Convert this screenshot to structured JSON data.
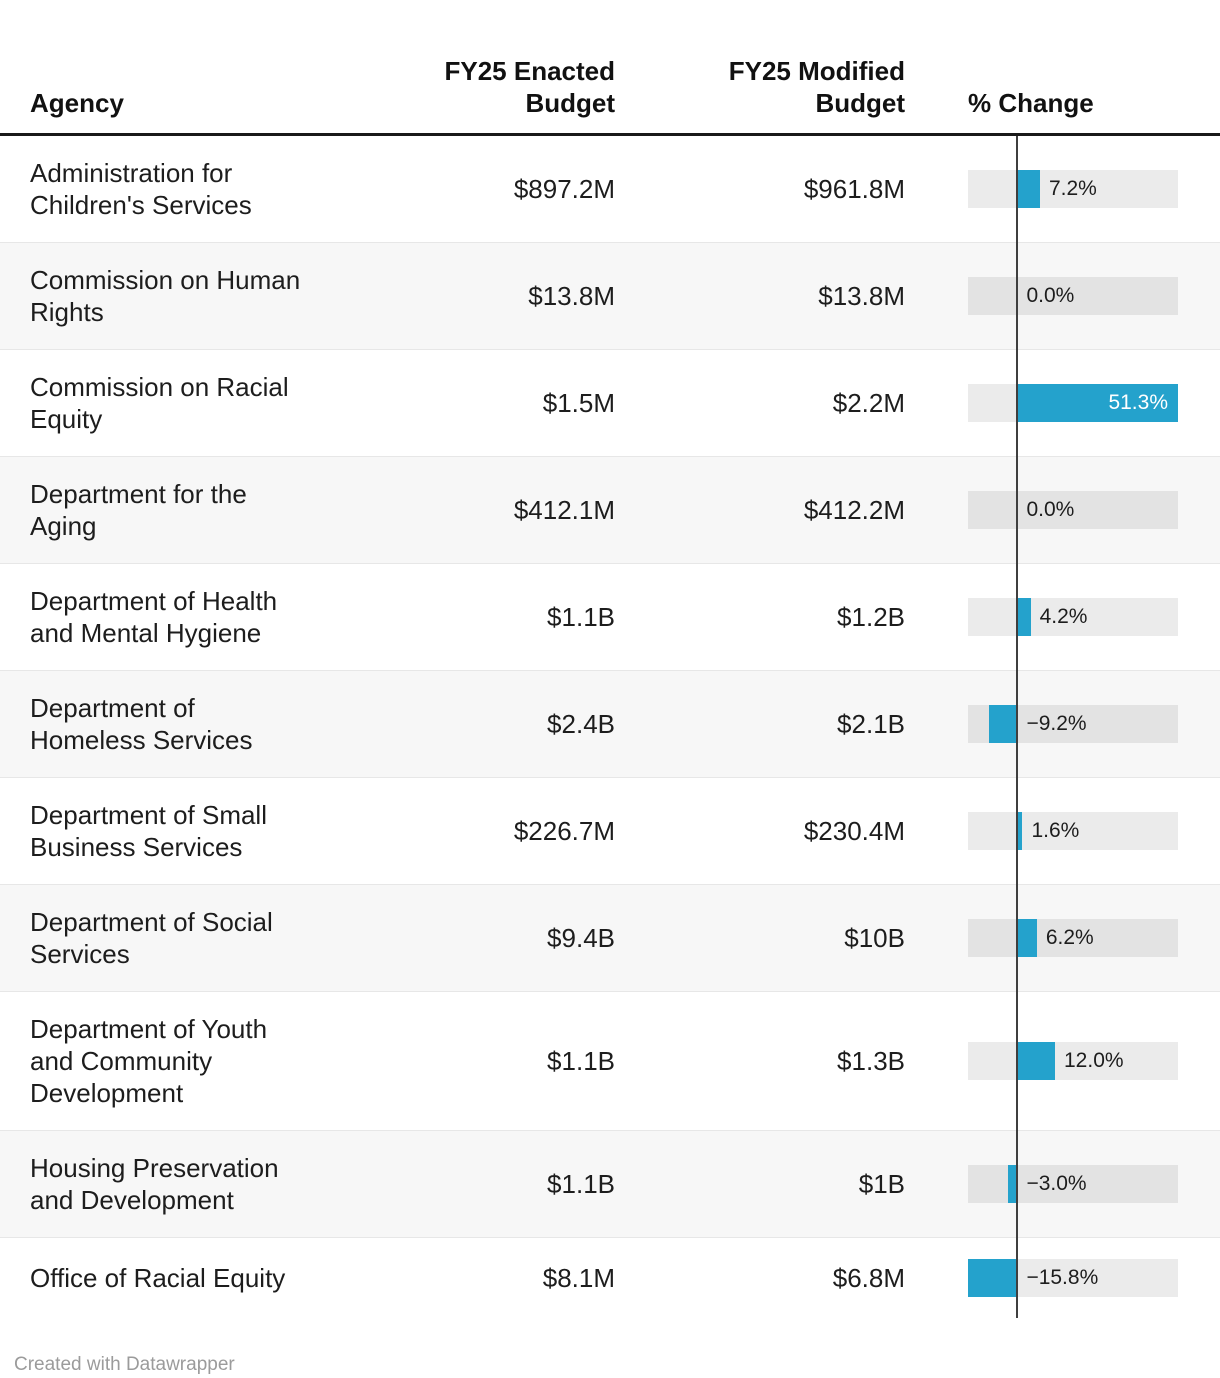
{
  "table": {
    "headers": {
      "agency": "Agency",
      "enacted_lines": [
        "FY25 Enacted",
        "Budget"
      ],
      "modified_lines": [
        "FY25 Modified",
        "Budget"
      ],
      "change": "% Change"
    },
    "rows": [
      {
        "agency_lines": [
          "Administration for",
          "Children's Services"
        ],
        "enacted": "$897.2M",
        "modified": "$961.8M",
        "change_pct": 7.2,
        "change_label": "7.2%",
        "label_inside": false
      },
      {
        "agency_lines": [
          "Commission on Human",
          "Rights"
        ],
        "enacted": "$13.8M",
        "modified": "$13.8M",
        "change_pct": 0.0,
        "change_label": "0.0%",
        "label_inside": false
      },
      {
        "agency_lines": [
          "Commission on Racial",
          "Equity"
        ],
        "enacted": "$1.5M",
        "modified": "$2.2M",
        "change_pct": 51.3,
        "change_label": "51.3%",
        "label_inside": true
      },
      {
        "agency_lines": [
          "Department for the",
          "Aging"
        ],
        "enacted": "$412.1M",
        "modified": "$412.2M",
        "change_pct": 0.0,
        "change_label": "0.0%",
        "label_inside": false
      },
      {
        "agency_lines": [
          "Department of Health",
          "and Mental Hygiene"
        ],
        "enacted": "$1.1B",
        "modified": "$1.2B",
        "change_pct": 4.2,
        "change_label": "4.2%",
        "label_inside": false
      },
      {
        "agency_lines": [
          "Department of",
          "Homeless Services"
        ],
        "enacted": "$2.4B",
        "modified": "$2.1B",
        "change_pct": -9.2,
        "change_label": "−9.2%",
        "label_inside": false
      },
      {
        "agency_lines": [
          "Department of Small",
          "Business Services"
        ],
        "enacted": "$226.7M",
        "modified": "$230.4M",
        "change_pct": 1.6,
        "change_label": "1.6%",
        "label_inside": false
      },
      {
        "agency_lines": [
          "Department of Social",
          "Services"
        ],
        "enacted": "$9.4B",
        "modified": "$10B",
        "change_pct": 6.2,
        "change_label": "6.2%",
        "label_inside": false
      },
      {
        "agency_lines": [
          "Department of Youth",
          "and Community",
          "Development"
        ],
        "enacted": "$1.1B",
        "modified": "$1.3B",
        "change_pct": 12.0,
        "change_label": "12.0%",
        "label_inside": false
      },
      {
        "agency_lines": [
          "Housing Preservation",
          "and Development"
        ],
        "enacted": "$1.1B",
        "modified": "$1B",
        "change_pct": -3.0,
        "change_label": "−3.0%",
        "label_inside": false
      },
      {
        "agency_lines": [
          "Office of Racial Equity"
        ],
        "enacted": "$8.1M",
        "modified": "$6.8M",
        "change_pct": -15.8,
        "change_label": "−15.8%",
        "label_inside": false
      }
    ]
  },
  "chart_data": {
    "type": "table",
    "title": "",
    "columns": [
      "Agency",
      "FY25 Enacted Budget",
      "FY25 Modified Budget",
      "% Change"
    ],
    "rows": [
      [
        "Administration for Children's Services",
        "$897.2M",
        "$961.8M",
        "7.2%"
      ],
      [
        "Commission on Human Rights",
        "$13.8M",
        "$13.8M",
        "0.0%"
      ],
      [
        "Commission on Racial Equity",
        "$1.5M",
        "$2.2M",
        "51.3%"
      ],
      [
        "Department for the Aging",
        "$412.1M",
        "$412.2M",
        "0.0%"
      ],
      [
        "Department of Health and Mental Hygiene",
        "$1.1B",
        "$1.2B",
        "4.2%"
      ],
      [
        "Department of Homeless Services",
        "$2.4B",
        "$2.1B",
        "−9.2%"
      ],
      [
        "Department of Small Business Services",
        "$226.7M",
        "$230.4M",
        "1.6%"
      ],
      [
        "Department of Social Services",
        "$9.4B",
        "$10B",
        "6.2%"
      ],
      [
        "Department of Youth and Community Development",
        "$1.1B",
        "$1.3B",
        "12.0%"
      ],
      [
        "Housing Preservation and Development",
        "$1.1B",
        "$1B",
        "−3.0%"
      ],
      [
        "Office of Racial Equity",
        "$8.1M",
        "$6.8M",
        "−15.8%"
      ]
    ],
    "embedded_bar": {
      "column": "% Change",
      "values": [
        7.2,
        0.0,
        51.3,
        0.0,
        4.2,
        -9.2,
        1.6,
        6.2,
        12.0,
        -3.0,
        -15.8
      ],
      "axis_range": [
        -15.8,
        51.3
      ],
      "bar_type": "diverging-horizontal",
      "zero_line": true
    }
  },
  "colors": {
    "bar": "#24a2cc",
    "bar_label_inside": "#ffffff",
    "track": "rgba(0,0,0,0.08)",
    "stripe": "#f7f7f7",
    "zero_line": "#3f3f3f",
    "header_rule": "#191919",
    "row_rule": "#e7e7e7",
    "text": "#1d1d1d",
    "credit_text": "#9b9b9b"
  },
  "footer": {
    "credit": "Created with Datawrapper"
  }
}
